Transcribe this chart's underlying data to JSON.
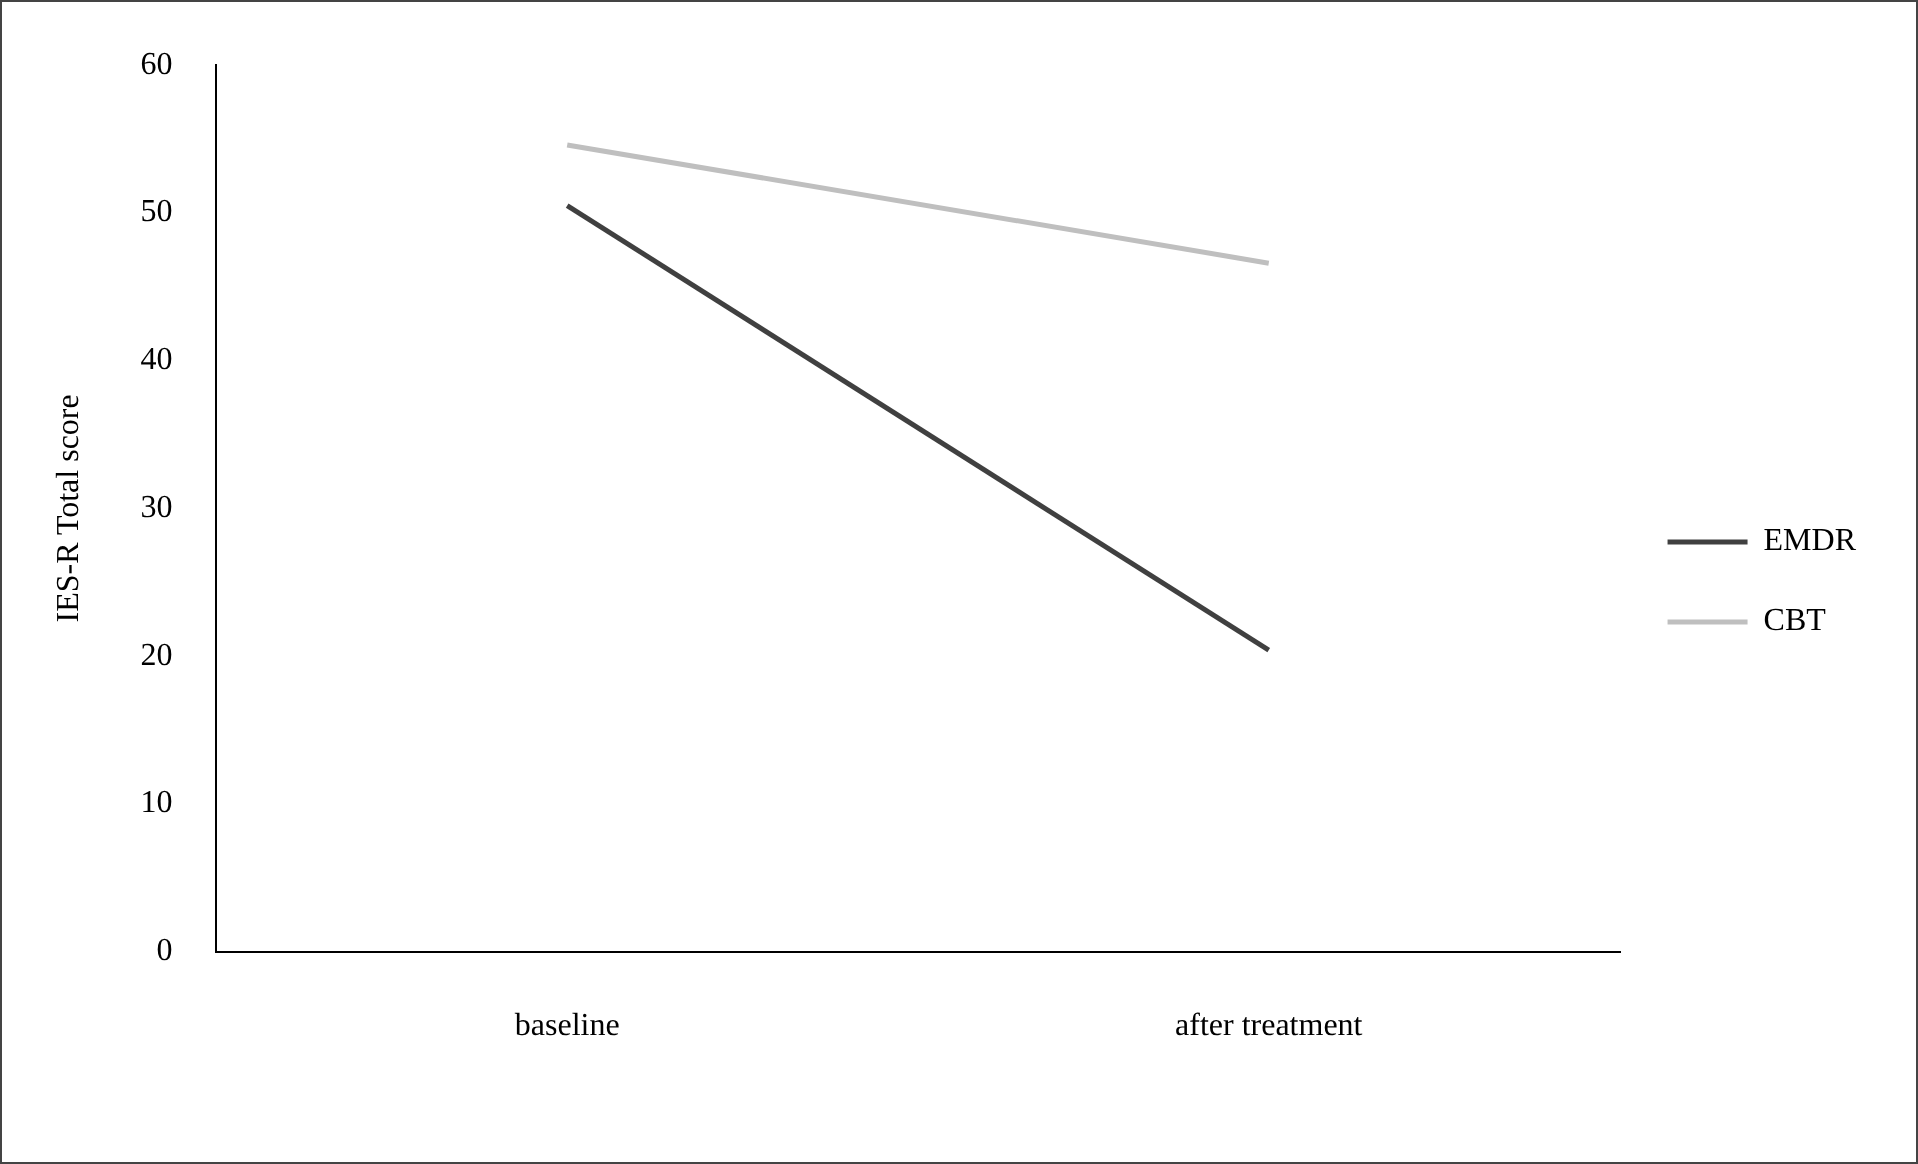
{
  "chart_data": {
    "type": "line",
    "ylabel": "IES-R Total score",
    "categories": [
      "baseline",
      "after treatment"
    ],
    "series": [
      {
        "name": "EMDR",
        "color": "#404040",
        "values": [
          50.5,
          20.4
        ]
      },
      {
        "name": "CBT",
        "color": "#bfbfbf",
        "values": [
          54.6,
          46.6
        ]
      }
    ],
    "ylim": [
      0,
      60
    ],
    "yticks": [
      0,
      10,
      20,
      30,
      40,
      50,
      60
    ],
    "grid": false,
    "legend": "right",
    "marker": "none",
    "line_style": "solid"
  }
}
